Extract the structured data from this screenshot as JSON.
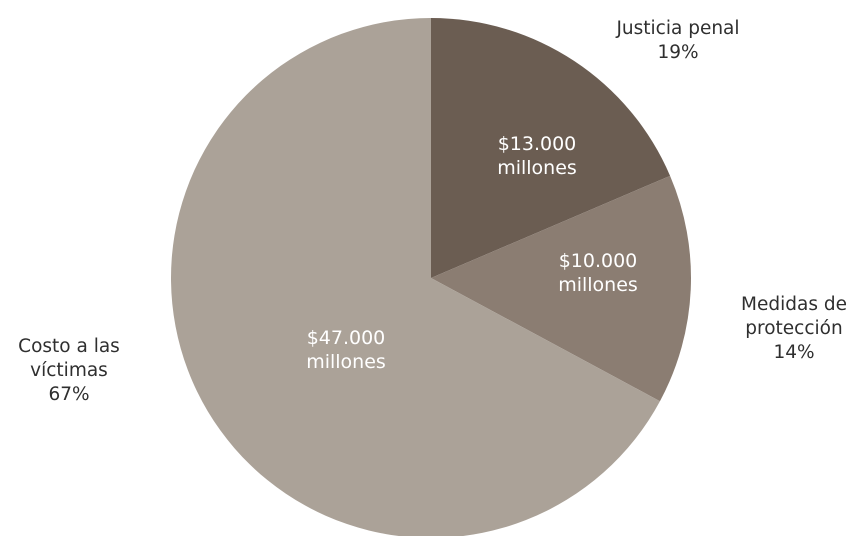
{
  "chart_data": {
    "type": "pie",
    "start_angle_deg": 0,
    "direction": "clockwise",
    "slices": [
      {
        "category": [
          "Justicia penal"
        ],
        "percent_label": "19%",
        "percent": 19,
        "amount_label": [
          "$13.000",
          "millones"
        ],
        "value": 13000,
        "color": "#6b5d52"
      },
      {
        "category": [
          "Medidas de",
          "protección"
        ],
        "percent_label": "14%",
        "percent": 14,
        "amount_label": [
          "$10.000",
          "millones"
        ],
        "value": 10000,
        "color": "#8b7d72"
      },
      {
        "category": [
          "Costo a las",
          "víctimas"
        ],
        "percent_label": "67%",
        "percent": 67,
        "amount_label": [
          "$47.000",
          "millones"
        ],
        "value": 47000,
        "color": "#aba298"
      }
    ]
  }
}
